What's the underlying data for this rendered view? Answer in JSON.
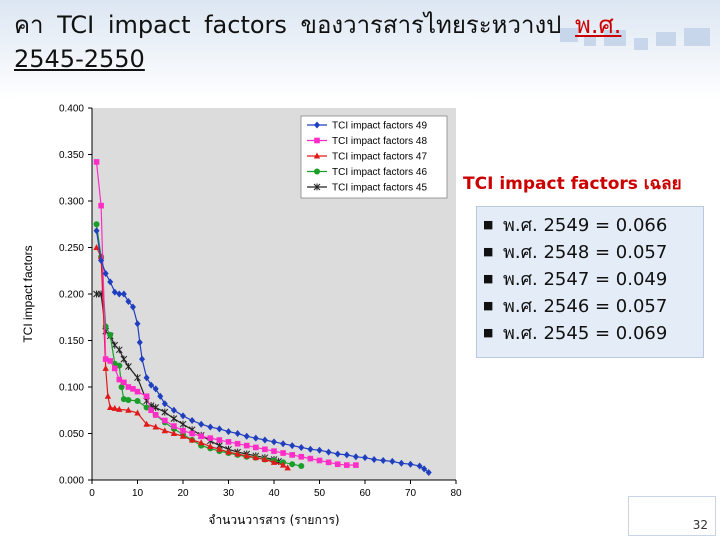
{
  "slide": {
    "title_main": "คา TCI impact factors ของวารสารไทยระหวางป ",
    "title_highlight": "พ.ศ.",
    "title_years": "2545-2550",
    "page_number": "32"
  },
  "averages": {
    "heading": "TCI impact factors เฉลย",
    "bullet": "■",
    "items": [
      "พ.ศ. 2549 = 0.066",
      "พ.ศ. 2548 = 0.057",
      "พ.ศ. 2547 = 0.049",
      "พ.ศ. 2546 = 0.057",
      "พ.ศ. 2545 = 0.069"
    ]
  },
  "chart_data": {
    "type": "line",
    "title": "",
    "xlabel": "จำนวนวารสาร (รายการ)",
    "ylabel": "TCI impact factors",
    "xlim": [
      0,
      80
    ],
    "ylim": [
      0,
      0.4
    ],
    "xticks": [
      "0",
      "10",
      "20",
      "30",
      "40",
      "50",
      "60",
      "70",
      "80"
    ],
    "yticks": [
      "0.000",
      "0.050",
      "0.100",
      "0.150",
      "0.200",
      "0.250",
      "0.300",
      "0.350",
      "0.400"
    ],
    "grid": false,
    "legend_position": "top-right",
    "series": [
      {
        "name": "TCI impact factors 49",
        "color": "#1f3fbf",
        "marker": "diamond",
        "points": [
          [
            1,
            0.268
          ],
          [
            2,
            0.236
          ],
          [
            3,
            0.222
          ],
          [
            4,
            0.213
          ],
          [
            5,
            0.202
          ],
          [
            6,
            0.2
          ],
          [
            7,
            0.2
          ],
          [
            8,
            0.192
          ],
          [
            9,
            0.186
          ],
          [
            10,
            0.168
          ],
          [
            10.5,
            0.148
          ],
          [
            11,
            0.13
          ],
          [
            12,
            0.11
          ],
          [
            13,
            0.102
          ],
          [
            14,
            0.098
          ],
          [
            15,
            0.09
          ],
          [
            16,
            0.082
          ],
          [
            18,
            0.075
          ],
          [
            20,
            0.069
          ],
          [
            22,
            0.064
          ],
          [
            24,
            0.06
          ],
          [
            26,
            0.057
          ],
          [
            28,
            0.055
          ],
          [
            30,
            0.052
          ],
          [
            32,
            0.05
          ],
          [
            34,
            0.047
          ],
          [
            36,
            0.045
          ],
          [
            38,
            0.043
          ],
          [
            40,
            0.041
          ],
          [
            42,
            0.039
          ],
          [
            44,
            0.037
          ],
          [
            46,
            0.035
          ],
          [
            48,
            0.033
          ],
          [
            50,
            0.032
          ],
          [
            52,
            0.03
          ],
          [
            54,
            0.028
          ],
          [
            56,
            0.027
          ],
          [
            58,
            0.025
          ],
          [
            60,
            0.024
          ],
          [
            62,
            0.022
          ],
          [
            64,
            0.021
          ],
          [
            66,
            0.02
          ],
          [
            68,
            0.018
          ],
          [
            70,
            0.017
          ],
          [
            72,
            0.015
          ],
          [
            73,
            0.012
          ],
          [
            74,
            0.008
          ]
        ]
      },
      {
        "name": "TCI impact factors 48",
        "color": "#ff2cc8",
        "marker": "square",
        "points": [
          [
            1,
            0.342
          ],
          [
            2,
            0.295
          ],
          [
            3,
            0.13
          ],
          [
            4,
            0.128
          ],
          [
            5,
            0.12
          ],
          [
            6,
            0.108
          ],
          [
            7,
            0.105
          ],
          [
            8,
            0.1
          ],
          [
            9,
            0.098
          ],
          [
            10,
            0.095
          ],
          [
            12,
            0.09
          ],
          [
            13,
            0.075
          ],
          [
            14,
            0.07
          ],
          [
            16,
            0.064
          ],
          [
            18,
            0.058
          ],
          [
            20,
            0.053
          ],
          [
            22,
            0.05
          ],
          [
            24,
            0.047
          ],
          [
            26,
            0.045
          ],
          [
            28,
            0.043
          ],
          [
            30,
            0.041
          ],
          [
            32,
            0.039
          ],
          [
            34,
            0.037
          ],
          [
            36,
            0.035
          ],
          [
            38,
            0.033
          ],
          [
            40,
            0.031
          ],
          [
            42,
            0.029
          ],
          [
            44,
            0.027
          ],
          [
            46,
            0.025
          ],
          [
            48,
            0.023
          ],
          [
            50,
            0.021
          ],
          [
            52,
            0.019
          ],
          [
            54,
            0.017
          ],
          [
            56,
            0.016
          ],
          [
            58,
            0.016
          ]
        ]
      },
      {
        "name": "TCI impact factors 47",
        "color": "#e01a1a",
        "marker": "triangle",
        "points": [
          [
            1,
            0.25
          ],
          [
            2,
            0.24
          ],
          [
            3,
            0.12
          ],
          [
            3.5,
            0.09
          ],
          [
            4,
            0.078
          ],
          [
            5,
            0.077
          ],
          [
            6,
            0.076
          ],
          [
            8,
            0.075
          ],
          [
            10,
            0.072
          ],
          [
            12,
            0.06
          ],
          [
            14,
            0.057
          ],
          [
            16,
            0.053
          ],
          [
            18,
            0.05
          ],
          [
            20,
            0.047
          ],
          [
            22,
            0.043
          ],
          [
            24,
            0.04
          ],
          [
            26,
            0.036
          ],
          [
            28,
            0.033
          ],
          [
            30,
            0.03
          ],
          [
            32,
            0.028
          ],
          [
            34,
            0.026
          ],
          [
            36,
            0.024
          ],
          [
            38,
            0.022
          ],
          [
            40,
            0.019
          ],
          [
            42,
            0.016
          ],
          [
            43,
            0.013
          ]
        ]
      },
      {
        "name": "TCI impact factors 46",
        "color": "#1a9e2a",
        "marker": "circle",
        "points": [
          [
            1,
            0.275
          ],
          [
            2,
            0.24
          ],
          [
            3,
            0.165
          ],
          [
            4,
            0.156
          ],
          [
            5,
            0.125
          ],
          [
            6,
            0.123
          ],
          [
            6.5,
            0.1
          ],
          [
            7,
            0.087
          ],
          [
            8,
            0.086
          ],
          [
            10,
            0.085
          ],
          [
            12,
            0.078
          ],
          [
            14,
            0.07
          ],
          [
            16,
            0.062
          ],
          [
            18,
            0.055
          ],
          [
            20,
            0.049
          ],
          [
            22,
            0.043
          ],
          [
            24,
            0.037
          ],
          [
            26,
            0.034
          ],
          [
            28,
            0.031
          ],
          [
            30,
            0.029
          ],
          [
            32,
            0.027
          ],
          [
            34,
            0.025
          ],
          [
            36,
            0.024
          ],
          [
            38,
            0.022
          ],
          [
            40,
            0.021
          ],
          [
            42,
            0.019
          ],
          [
            44,
            0.017
          ],
          [
            46,
            0.015
          ]
        ]
      },
      {
        "name": "TCI impact factors 45",
        "color": "#222222",
        "marker": "star",
        "points": [
          [
            1,
            0.2
          ],
          [
            2,
            0.2
          ],
          [
            3,
            0.16
          ],
          [
            4,
            0.155
          ],
          [
            5,
            0.145
          ],
          [
            6,
            0.14
          ],
          [
            7,
            0.13
          ],
          [
            8,
            0.122
          ],
          [
            10,
            0.11
          ],
          [
            12,
            0.085
          ],
          [
            13,
            0.08
          ],
          [
            14,
            0.078
          ],
          [
            16,
            0.073
          ],
          [
            18,
            0.066
          ],
          [
            20,
            0.06
          ],
          [
            22,
            0.054
          ],
          [
            24,
            0.048
          ],
          [
            26,
            0.042
          ],
          [
            28,
            0.037
          ],
          [
            30,
            0.033
          ],
          [
            32,
            0.03
          ],
          [
            34,
            0.028
          ],
          [
            36,
            0.026
          ],
          [
            38,
            0.024
          ],
          [
            40,
            0.022
          ],
          [
            41,
            0.02
          ]
        ]
      }
    ]
  }
}
